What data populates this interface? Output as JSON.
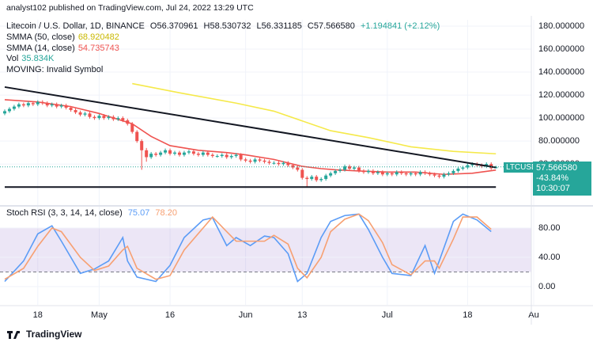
{
  "header": {
    "published": "analyst102 published on TradingView.com, Jul 24, 2022 13:29 UTC",
    "symbol": "Litecoin / U.S. Dollar, 1D, BINANCE",
    "ohlc": [
      "O56.370961",
      "H58.530732",
      "L56.331185",
      "C57.566580"
    ],
    "change": "+1.194841 (+2.12%)",
    "legend": [
      {
        "name": "SMMA (50, close)",
        "value": "68.920482",
        "color": "#c9b800"
      },
      {
        "name": "SMMA (14, close)",
        "value": "54.735743",
        "color": "#ef5350"
      },
      {
        "name": "Vol",
        "value": "35.834K",
        "color": "#26a69a"
      },
      {
        "name": "MOVING: Invalid Symbol"
      }
    ],
    "badge": {
      "symbol": "LTCUSD",
      "price": "57.566580",
      "change": "-43.84%",
      "countdown": "10:30:07"
    },
    "footer": "TradingView"
  },
  "chart_data": [
    {
      "type": "candlestick",
      "up_color": "#26a69a",
      "down_color": "#ef5350",
      "grid": true,
      "xlim": [
        -8,
        104.5
      ],
      "ylim": [
        25,
        185.5
      ],
      "yticks": [
        {
          "value": 60,
          "label": "60.000000"
        },
        {
          "value": 80,
          "label": "80.000000"
        },
        {
          "value": 100,
          "label": "100.000000"
        },
        {
          "value": 120,
          "label": "120.000000"
        },
        {
          "value": 140,
          "label": "140.000000"
        },
        {
          "value": 160,
          "label": "160.000000"
        },
        {
          "value": 180,
          "label": "180.000000"
        }
      ],
      "x": [
        -7,
        -6,
        -5,
        -4,
        -3,
        -2,
        -1,
        0,
        1,
        2,
        3,
        4,
        5,
        6,
        7,
        8,
        9,
        10,
        11,
        12,
        13,
        14,
        15,
        16,
        17,
        18,
        19,
        20,
        21,
        22,
        23,
        24,
        25,
        26,
        27,
        28,
        29,
        30,
        31,
        32,
        33,
        34,
        35,
        36,
        37,
        38,
        39,
        40,
        41,
        42,
        43,
        44,
        45,
        46,
        47,
        48,
        49,
        50,
        51,
        52,
        53,
        54,
        55,
        56,
        57,
        58,
        59,
        60,
        61,
        62,
        63,
        64,
        65,
        66,
        67,
        68,
        69,
        70,
        71,
        72,
        73,
        74,
        75,
        76,
        77,
        78,
        79,
        80,
        81,
        82,
        83,
        84,
        85,
        86,
        87,
        88,
        89,
        90,
        91,
        92,
        93,
        94,
        95,
        96,
        97
      ],
      "ohlc": [
        [
          104,
          107.5,
          102.5,
          106
        ],
        [
          106,
          109.5,
          104.5,
          108
        ],
        [
          108,
          111.5,
          106.5,
          110
        ],
        [
          110,
          113.5,
          108.5,
          112
        ],
        [
          112,
          113.5,
          109.5,
          111
        ],
        [
          111,
          114.5,
          109.5,
          113
        ],
        [
          113,
          114.5,
          110.5,
          112
        ],
        [
          112,
          115.5,
          110.5,
          114
        ],
        [
          114,
          115.5,
          111.5,
          113
        ],
        [
          113,
          114.5,
          109.5,
          111
        ],
        [
          111,
          113.5,
          109.5,
          112
        ],
        [
          112,
          113.5,
          108.5,
          110
        ],
        [
          110,
          112.5,
          108.5,
          111
        ],
        [
          111,
          112.5,
          107.5,
          109
        ],
        [
          109,
          110.5,
          105.5,
          107
        ],
        [
          107,
          108.5,
          103.5,
          105
        ],
        [
          105,
          106.5,
          101.5,
          103
        ],
        [
          103,
          105.5,
          101.5,
          104
        ],
        [
          104,
          105.5,
          99.5,
          101
        ],
        [
          101,
          102.5,
          98.5,
          100
        ],
        [
          100,
          103.5,
          98.5,
          102
        ],
        [
          102,
          103.5,
          98.5,
          100
        ],
        [
          100,
          102.5,
          98.5,
          101
        ],
        [
          101,
          102.5,
          97.5,
          99
        ],
        [
          99,
          101.5,
          97.5,
          100
        ],
        [
          100,
          101.5,
          96.5,
          98
        ],
        [
          98,
          99.5,
          93.5,
          95
        ],
        [
          95,
          96.5,
          86.5,
          88
        ],
        [
          88,
          89.5,
          78.5,
          80
        ],
        [
          80,
          81.5,
          55,
          72
        ],
        [
          72,
          74,
          62,
          66
        ],
        [
          66,
          70.5,
          64.5,
          69
        ],
        [
          69,
          70.5,
          66.5,
          68
        ],
        [
          68,
          71.5,
          66.5,
          70
        ],
        [
          70,
          73.5,
          68.5,
          72
        ],
        [
          72,
          73.5,
          67.5,
          69
        ],
        [
          69,
          71.5,
          67.5,
          70
        ],
        [
          70,
          71.5,
          66.5,
          68
        ],
        [
          68,
          71.5,
          66.5,
          70
        ],
        [
          70,
          72.5,
          68.5,
          71
        ],
        [
          71,
          72.5,
          67.5,
          69
        ],
        [
          69,
          70.5,
          66.5,
          68
        ],
        [
          68,
          71.5,
          66.5,
          70
        ],
        [
          70,
          71.5,
          66.5,
          68
        ],
        [
          68,
          69.5,
          65.5,
          67
        ],
        [
          67,
          68.5,
          65.5,
          67
        ],
        [
          67,
          69.5,
          65.5,
          68
        ],
        [
          68,
          69.5,
          64.5,
          66
        ],
        [
          66,
          68.5,
          64.5,
          67
        ],
        [
          67,
          69.5,
          65.5,
          68
        ],
        [
          68,
          69.5,
          62.5,
          64
        ],
        [
          64,
          65.5,
          61.5,
          63
        ],
        [
          63,
          64.5,
          60.5,
          62
        ],
        [
          62,
          65.5,
          60.5,
          64
        ],
        [
          64,
          65.5,
          61.5,
          63
        ],
        [
          63,
          64.5,
          60.5,
          62
        ],
        [
          62,
          63.5,
          59.5,
          61
        ],
        [
          61,
          62.5,
          59.5,
          61
        ],
        [
          61,
          62.5,
          58.5,
          60
        ],
        [
          60,
          62.5,
          58.5,
          61
        ],
        [
          61,
          62.5,
          57.5,
          59
        ],
        [
          59,
          60.5,
          55.5,
          57
        ],
        [
          57,
          58.5,
          53.5,
          55
        ],
        [
          55,
          56.5,
          46.5,
          48
        ],
        [
          48,
          49.5,
          40,
          47
        ],
        [
          47,
          50.5,
          45.5,
          49
        ],
        [
          49,
          50.5,
          44.5,
          46
        ],
        [
          46,
          48.5,
          44.5,
          47
        ],
        [
          47,
          51.5,
          45.5,
          50
        ],
        [
          50,
          53.5,
          48.5,
          52
        ],
        [
          52,
          55.5,
          50.5,
          54
        ],
        [
          54,
          56.5,
          52.5,
          55
        ],
        [
          55,
          59.5,
          53.5,
          58
        ],
        [
          58,
          59.5,
          54.5,
          56
        ],
        [
          56,
          58.5,
          54.5,
          57
        ],
        [
          57,
          58.5,
          52.5,
          54
        ],
        [
          54,
          55.5,
          51.5,
          53
        ],
        [
          53,
          55.5,
          51.5,
          54
        ],
        [
          54,
          55.5,
          50.5,
          52
        ],
        [
          52,
          54.5,
          50.5,
          53
        ],
        [
          53,
          54.5,
          49.5,
          51
        ],
        [
          51,
          53.5,
          49.5,
          52
        ],
        [
          52,
          53.5,
          49.5,
          51
        ],
        [
          51,
          54.5,
          49.5,
          53
        ],
        [
          53,
          54.5,
          50.5,
          52
        ],
        [
          52,
          53.5,
          49.5,
          51
        ],
        [
          51,
          53.5,
          49.5,
          52
        ],
        [
          52,
          53.5,
          49.5,
          51
        ],
        [
          51,
          54.5,
          49.5,
          53
        ],
        [
          53,
          54.5,
          50.5,
          52
        ],
        [
          52,
          53.5,
          49.5,
          51
        ],
        [
          51,
          52.5,
          48.5,
          50
        ],
        [
          50,
          51.5,
          47.5,
          49
        ],
        [
          49,
          52.5,
          47.5,
          51
        ],
        [
          51,
          53.5,
          49.5,
          52
        ],
        [
          52,
          55.5,
          50.5,
          54
        ],
        [
          54,
          57.5,
          52.5,
          56
        ],
        [
          56,
          58.5,
          54.5,
          57
        ],
        [
          57,
          60.5,
          55.5,
          59
        ],
        [
          59,
          61.5,
          57.5,
          60
        ],
        [
          60,
          61.5,
          57.5,
          59
        ],
        [
          59,
          60.5,
          56.5,
          58
        ],
        [
          58,
          61.5,
          56.5,
          60
        ],
        [
          60,
          61.5,
          54.9,
          56.370961
        ],
        [
          56.370961,
          58.530732,
          56.331185,
          57.56658
        ]
      ],
      "series": [
        {
          "name": "SMMA (50, close)",
          "color": "#f5e94a",
          "x": [
            20,
            30,
            42,
            50,
            62,
            70,
            79,
            88,
            97
          ],
          "values": [
            130,
            122,
            113,
            106,
            89,
            83,
            75,
            71,
            68.920482
          ]
        },
        {
          "name": "SMMA (14, close)",
          "color": "#ef5350",
          "x": [
            -7,
            0,
            7,
            13,
            20,
            24,
            28,
            34,
            40,
            44,
            50,
            56,
            60,
            63,
            68,
            74,
            80,
            86,
            92,
            97
          ],
          "values": [
            116,
            114,
            110,
            104,
            95,
            84,
            76,
            72,
            70,
            68,
            64,
            58,
            56,
            55,
            54,
            53,
            53,
            51,
            52,
            54.735743
          ]
        }
      ],
      "trendlines": [
        {
          "color": "#131722",
          "x": [
            -7,
            97
          ],
          "y": [
            127,
            57
          ]
        },
        {
          "color": "#131722",
          "x": [
            -7,
            97
          ],
          "y": [
            40,
            40
          ]
        }
      ]
    },
    {
      "type": "line",
      "title": "Stoch RSI (3, 3, 14, 14, close)",
      "grid": true,
      "band": [
        20,
        80
      ],
      "band_color": "#7e57c2",
      "xlim": [
        -8,
        104.5
      ],
      "ylim": [
        -24.9,
        107
      ],
      "xticks": [
        {
          "value": 0,
          "label": "18"
        },
        {
          "value": 13,
          "label": "May"
        },
        {
          "value": 28,
          "label": "16"
        },
        {
          "value": 44,
          "label": "Jun"
        },
        {
          "value": 56,
          "label": "13"
        },
        {
          "value": 74,
          "label": "Jul"
        },
        {
          "value": 91,
          "label": "18"
        },
        {
          "value": 105,
          "label": "Au"
        }
      ],
      "yticks": [
        {
          "value": 0,
          "label": "0.00"
        },
        {
          "value": 40,
          "label": "40.00"
        },
        {
          "value": 80,
          "label": "80.00"
        }
      ],
      "x": [
        -7,
        -3,
        0,
        3,
        5,
        9,
        12,
        15,
        18,
        19,
        21,
        25,
        28,
        31,
        35,
        37,
        40,
        42,
        45,
        48,
        50,
        53,
        55,
        57,
        60,
        62,
        65,
        68,
        70,
        73,
        75,
        79,
        82,
        84,
        85,
        88,
        90,
        93,
        96
      ],
      "series": [
        {
          "name": "75.07",
          "color": "#5b9cf6",
          "values": [
            7,
            35,
            72,
            83,
            62,
            18,
            24,
            35,
            67,
            35,
            13,
            7,
            29,
            67,
            91,
            94,
            56,
            67,
            56,
            69,
            67,
            45,
            7,
            18,
            67,
            89,
            97,
            99,
            78,
            40,
            18,
            15,
            56,
            18,
            35,
            89,
            99,
            91,
            75.07
          ]
        },
        {
          "name": "78.20",
          "color": "#f7a072",
          "values": [
            10,
            25,
            55,
            80,
            75,
            40,
            22,
            28,
            50,
            55,
            25,
            10,
            15,
            50,
            80,
            95,
            75,
            62,
            62,
            62,
            70,
            58,
            25,
            12,
            40,
            75,
            92,
            99,
            90,
            60,
            30,
            16,
            35,
            35,
            25,
            65,
            95,
            95,
            78.2
          ]
        }
      ]
    }
  ]
}
